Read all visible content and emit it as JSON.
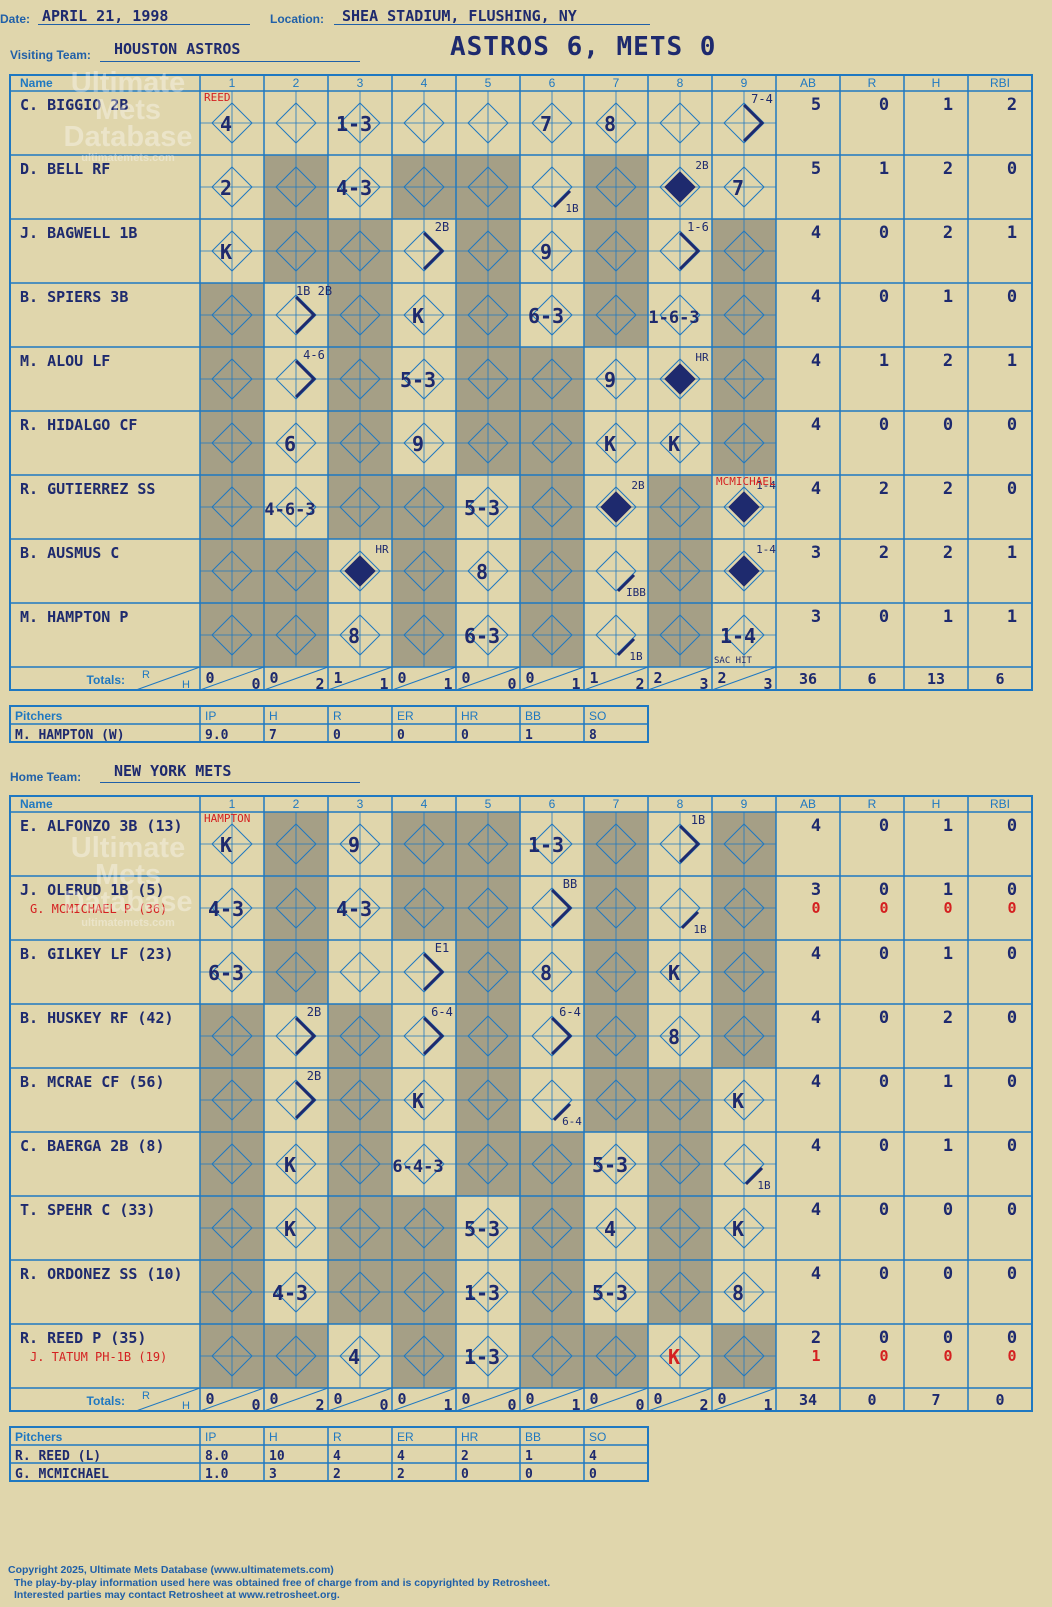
{
  "header": {
    "date_label": "Date:",
    "date": "APRIL 21, 1998",
    "location_label": "Location:",
    "location": "SHEA STADIUM, FLUSHING, NY",
    "visiting_label": "Visiting Team:",
    "visiting_team": "HOUSTON ASTROS",
    "score_title": "ASTROS 6, METS 0",
    "home_label": "Home Team:",
    "home_team": "NEW YORK METS"
  },
  "watermark": {
    "line1": "Ultimate",
    "line2": "Mets",
    "line3": "Database",
    "url": "ultimatemets.com"
  },
  "columns": {
    "name": "Name",
    "innings": [
      "1",
      "2",
      "3",
      "4",
      "5",
      "6",
      "7",
      "8",
      "9"
    ],
    "stats": [
      "AB",
      "R",
      "H",
      "RBI"
    ]
  },
  "totals_label": "Totals:",
  "rh": {
    "r": "R",
    "h": "H"
  },
  "visitors": {
    "players": [
      {
        "name": "C. BIGGIO 2B",
        "sub": "",
        "stats": [
          "5",
          "0",
          "1",
          "2"
        ],
        "sub_stats": []
      },
      {
        "name": "D. BELL RF",
        "sub": "",
        "stats": [
          "5",
          "1",
          "2",
          "0"
        ],
        "sub_stats": []
      },
      {
        "name": "J. BAGWELL 1B",
        "sub": "",
        "stats": [
          "4",
          "0",
          "2",
          "1"
        ],
        "sub_stats": []
      },
      {
        "name": "B. SPIERS 3B",
        "sub": "",
        "stats": [
          "4",
          "0",
          "1",
          "0"
        ],
        "sub_stats": []
      },
      {
        "name": "M. ALOU LF",
        "sub": "",
        "stats": [
          "4",
          "1",
          "2",
          "1"
        ],
        "sub_stats": []
      },
      {
        "name": "R. HIDALGO CF",
        "sub": "",
        "stats": [
          "4",
          "0",
          "0",
          "0"
        ],
        "sub_stats": []
      },
      {
        "name": "R. GUTIERREZ SS",
        "sub": "",
        "stats": [
          "4",
          "2",
          "2",
          "0"
        ],
        "sub_stats": []
      },
      {
        "name": "B. AUSMUS C",
        "sub": "",
        "stats": [
          "3",
          "2",
          "2",
          "1"
        ],
        "sub_stats": []
      },
      {
        "name": "M. HAMPTON P",
        "sub": "",
        "stats": [
          "3",
          "0",
          "1",
          "1"
        ],
        "sub_stats": []
      }
    ],
    "shaded": [
      [
        0,
        0,
        0,
        0,
        0,
        0,
        0,
        0,
        0
      ],
      [
        0,
        1,
        0,
        1,
        1,
        0,
        1,
        0,
        0
      ],
      [
        0,
        1,
        1,
        0,
        1,
        0,
        1,
        0,
        1
      ],
      [
        1,
        0,
        1,
        0,
        1,
        0,
        1,
        0,
        1
      ],
      [
        1,
        0,
        1,
        0,
        1,
        1,
        0,
        0,
        1
      ],
      [
        1,
        0,
        1,
        0,
        1,
        1,
        0,
        0,
        1
      ],
      [
        1,
        0,
        1,
        1,
        0,
        1,
        0,
        1,
        0
      ],
      [
        1,
        1,
        0,
        1,
        0,
        1,
        0,
        1,
        0
      ],
      [
        1,
        1,
        0,
        1,
        0,
        1,
        0,
        1,
        0
      ]
    ],
    "plays": [
      {
        "r": 0,
        "c": 0,
        "t": "4"
      },
      {
        "r": 0,
        "c": 2,
        "t": "1-3"
      },
      {
        "r": 0,
        "c": 5,
        "t": "7"
      },
      {
        "r": 0,
        "c": 6,
        "t": "8"
      },
      {
        "r": 0,
        "c": 8,
        "t": "7-4",
        "k": "tr"
      },
      {
        "r": 1,
        "c": 0,
        "t": "2"
      },
      {
        "r": 1,
        "c": 2,
        "t": "4-3"
      },
      {
        "r": 1,
        "c": 5,
        "t": "1B",
        "k": "br"
      },
      {
        "r": 1,
        "c": 7,
        "t": "2B",
        "k": "run"
      },
      {
        "r": 1,
        "c": 8,
        "t": "7"
      },
      {
        "r": 2,
        "c": 0,
        "t": "K"
      },
      {
        "r": 2,
        "c": 3,
        "t": "2B",
        "k": "tr"
      },
      {
        "r": 2,
        "c": 5,
        "t": "9"
      },
      {
        "r": 2,
        "c": 7,
        "t": "1-6",
        "k": "tr"
      },
      {
        "r": 3,
        "c": 1,
        "t": "1B 2B",
        "k": "tr"
      },
      {
        "r": 3,
        "c": 3,
        "t": "K"
      },
      {
        "r": 3,
        "c": 5,
        "t": "6-3"
      },
      {
        "r": 3,
        "c": 7,
        "t": "1-6-3"
      },
      {
        "r": 4,
        "c": 1,
        "t": "4-6",
        "k": "tr"
      },
      {
        "r": 4,
        "c": 3,
        "t": "5-3"
      },
      {
        "r": 4,
        "c": 6,
        "t": "9"
      },
      {
        "r": 4,
        "c": 7,
        "t": "HR",
        "k": "run"
      },
      {
        "r": 5,
        "c": 1,
        "t": "6"
      },
      {
        "r": 5,
        "c": 3,
        "t": "9"
      },
      {
        "r": 5,
        "c": 6,
        "t": "K"
      },
      {
        "r": 5,
        "c": 7,
        "t": "K"
      },
      {
        "r": 6,
        "c": 1,
        "t": "4-6-3"
      },
      {
        "r": 6,
        "c": 4,
        "t": "5-3"
      },
      {
        "r": 6,
        "c": 6,
        "t": "2B",
        "k": "run"
      },
      {
        "r": 6,
        "c": 8,
        "t": "1-4",
        "k": "run"
      },
      {
        "r": 7,
        "c": 2,
        "t": "HR",
        "k": "run"
      },
      {
        "r": 7,
        "c": 4,
        "t": "8"
      },
      {
        "r": 7,
        "c": 6,
        "t": "IBB",
        "k": "br"
      },
      {
        "r": 7,
        "c": 8,
        "t": "1-4",
        "k": "run"
      },
      {
        "r": 8,
        "c": 2,
        "t": "8"
      },
      {
        "r": 8,
        "c": 4,
        "t": "6-3"
      },
      {
        "r": 8,
        "c": 6,
        "t": "1B",
        "k": "br"
      },
      {
        "r": 8,
        "c": 8,
        "t": "1-4"
      }
    ],
    "notes": [
      {
        "r": 0,
        "c": 0,
        "t": "REED"
      },
      {
        "r": 6,
        "c": 8,
        "t": "MCMICHAEL"
      }
    ],
    "extra": [
      {
        "r": 8,
        "c": 8,
        "t": "SAC HIT"
      }
    ],
    "totals_rh": [
      [
        "0",
        "0"
      ],
      [
        "0",
        "2"
      ],
      [
        "1",
        "1"
      ],
      [
        "0",
        "1"
      ],
      [
        "0",
        "0"
      ],
      [
        "0",
        "1"
      ],
      [
        "1",
        "2"
      ],
      [
        "2",
        "3"
      ],
      [
        "2",
        "3"
      ]
    ],
    "totals_stats": [
      "36",
      "6",
      "13",
      "6"
    ],
    "pitchers_header": [
      "Pitchers",
      "IP",
      "H",
      "R",
      "ER",
      "HR",
      "BB",
      "SO"
    ],
    "pitchers": [
      [
        "M. HAMPTON (W)",
        "9.0",
        "7",
        "0",
        "0",
        "0",
        "1",
        "8"
      ]
    ]
  },
  "home": {
    "players": [
      {
        "name": "E. ALFONZO 3B (13)",
        "sub": "",
        "stats": [
          "4",
          "0",
          "1",
          "0"
        ],
        "sub_stats": []
      },
      {
        "name": "J. OLERUD 1B (5)",
        "sub": "G. MCMICHAEL P (36)",
        "stats": [
          "3",
          "0",
          "1",
          "0"
        ],
        "sub_stats": [
          "0",
          "0",
          "0",
          "0"
        ]
      },
      {
        "name": "B. GILKEY LF (23)",
        "sub": "",
        "stats": [
          "4",
          "0",
          "1",
          "0"
        ],
        "sub_stats": []
      },
      {
        "name": "B. HUSKEY RF (42)",
        "sub": "",
        "stats": [
          "4",
          "0",
          "2",
          "0"
        ],
        "sub_stats": []
      },
      {
        "name": "B. MCRAE CF (56)",
        "sub": "",
        "stats": [
          "4",
          "0",
          "1",
          "0"
        ],
        "sub_stats": []
      },
      {
        "name": "C. BAERGA 2B (8)",
        "sub": "",
        "stats": [
          "4",
          "0",
          "1",
          "0"
        ],
        "sub_stats": []
      },
      {
        "name": "T. SPEHR C (33)",
        "sub": "",
        "stats": [
          "4",
          "0",
          "0",
          "0"
        ],
        "sub_stats": []
      },
      {
        "name": "R. ORDONEZ SS (10)",
        "sub": "",
        "stats": [
          "4",
          "0",
          "0",
          "0"
        ],
        "sub_stats": []
      },
      {
        "name": "R. REED P (35)",
        "sub": "J. TATUM PH-1B (19)",
        "stats": [
          "2",
          "0",
          "0",
          "0"
        ],
        "sub_stats": [
          "1",
          "0",
          "0",
          "0"
        ]
      }
    ],
    "shaded": [
      [
        0,
        1,
        0,
        1,
        1,
        0,
        1,
        0,
        1
      ],
      [
        0,
        1,
        0,
        1,
        1,
        0,
        1,
        0,
        1
      ],
      [
        0,
        1,
        0,
        0,
        1,
        0,
        1,
        0,
        1
      ],
      [
        1,
        0,
        1,
        0,
        1,
        0,
        1,
        0,
        1
      ],
      [
        1,
        0,
        1,
        0,
        1,
        0,
        1,
        1,
        0
      ],
      [
        1,
        0,
        1,
        0,
        1,
        1,
        0,
        1,
        0
      ],
      [
        1,
        0,
        1,
        1,
        0,
        1,
        0,
        1,
        0
      ],
      [
        1,
        0,
        1,
        1,
        0,
        1,
        0,
        1,
        0
      ],
      [
        1,
        1,
        0,
        1,
        0,
        1,
        1,
        0,
        1
      ]
    ],
    "plays": [
      {
        "r": 0,
        "c": 0,
        "t": "K"
      },
      {
        "r": 0,
        "c": 2,
        "t": "9"
      },
      {
        "r": 0,
        "c": 5,
        "t": "1-3"
      },
      {
        "r": 0,
        "c": 7,
        "t": "1B",
        "k": "tr"
      },
      {
        "r": 1,
        "c": 0,
        "t": "4-3"
      },
      {
        "r": 1,
        "c": 2,
        "t": "4-3"
      },
      {
        "r": 1,
        "c": 5,
        "t": "BB",
        "k": "tr"
      },
      {
        "r": 1,
        "c": 7,
        "t": "1B",
        "k": "br"
      },
      {
        "r": 2,
        "c": 0,
        "t": "6-3"
      },
      {
        "r": 2,
        "c": 3,
        "t": "E1",
        "k": "tr"
      },
      {
        "r": 2,
        "c": 5,
        "t": "8"
      },
      {
        "r": 2,
        "c": 7,
        "t": "K"
      },
      {
        "r": 3,
        "c": 1,
        "t": "2B",
        "k": "tr"
      },
      {
        "r": 3,
        "c": 3,
        "t": "6-4",
        "k": "tr"
      },
      {
        "r": 3,
        "c": 5,
        "t": "6-4",
        "k": "tr"
      },
      {
        "r": 3,
        "c": 7,
        "t": "8"
      },
      {
        "r": 4,
        "c": 1,
        "t": "2B",
        "k": "tr"
      },
      {
        "r": 4,
        "c": 3,
        "t": "K"
      },
      {
        "r": 4,
        "c": 5,
        "t": "6-4",
        "k": "br"
      },
      {
        "r": 4,
        "c": 8,
        "t": "K"
      },
      {
        "r": 5,
        "c": 1,
        "t": "K"
      },
      {
        "r": 5,
        "c": 3,
        "t": "6-4-3"
      },
      {
        "r": 5,
        "c": 6,
        "t": "5-3"
      },
      {
        "r": 5,
        "c": 8,
        "t": "1B",
        "k": "br"
      },
      {
        "r": 6,
        "c": 1,
        "t": "K"
      },
      {
        "r": 6,
        "c": 4,
        "t": "5-3"
      },
      {
        "r": 6,
        "c": 6,
        "t": "4"
      },
      {
        "r": 6,
        "c": 8,
        "t": "K"
      },
      {
        "r": 7,
        "c": 1,
        "t": "4-3"
      },
      {
        "r": 7,
        "c": 4,
        "t": "1-3"
      },
      {
        "r": 7,
        "c": 6,
        "t": "5-3"
      },
      {
        "r": 7,
        "c": 8,
        "t": "8"
      },
      {
        "r": 8,
        "c": 2,
        "t": "4"
      },
      {
        "r": 8,
        "c": 4,
        "t": "1-3"
      },
      {
        "r": 8,
        "c": 7,
        "t": "K",
        "k": "red"
      }
    ],
    "notes": [
      {
        "r": 0,
        "c": 0,
        "t": "HAMPTON"
      }
    ],
    "extra": [],
    "totals_rh": [
      [
        "0",
        "0"
      ],
      [
        "0",
        "2"
      ],
      [
        "0",
        "0"
      ],
      [
        "0",
        "1"
      ],
      [
        "0",
        "0"
      ],
      [
        "0",
        "1"
      ],
      [
        "0",
        "0"
      ],
      [
        "0",
        "2"
      ],
      [
        "0",
        "1"
      ]
    ],
    "totals_stats": [
      "34",
      "0",
      "7",
      "0"
    ],
    "pitchers_header": [
      "Pitchers",
      "IP",
      "H",
      "R",
      "ER",
      "HR",
      "BB",
      "SO"
    ],
    "pitchers": [
      [
        "R. REED (L)",
        "8.0",
        "10",
        "4",
        "4",
        "2",
        "1",
        "4"
      ],
      [
        "G. MCMICHAEL",
        "1.0",
        "3",
        "2",
        "2",
        "0",
        "0",
        "0"
      ]
    ]
  },
  "footer": {
    "copyright": "Copyright 2025, Ultimate Mets Database (www.ultimatemets.com)",
    "line2": "The play-by-play information used here was obtained free of charge from and is copyrighted by Retrosheet.",
    "line3": "Interested parties may contact Retrosheet at www.retrosheet.org."
  },
  "colors": {
    "paper": "#e0d6ac",
    "grid": "#1f78c1",
    "shade": "#a59f86",
    "ink": "#1e2a6e",
    "note": "#d42020"
  }
}
